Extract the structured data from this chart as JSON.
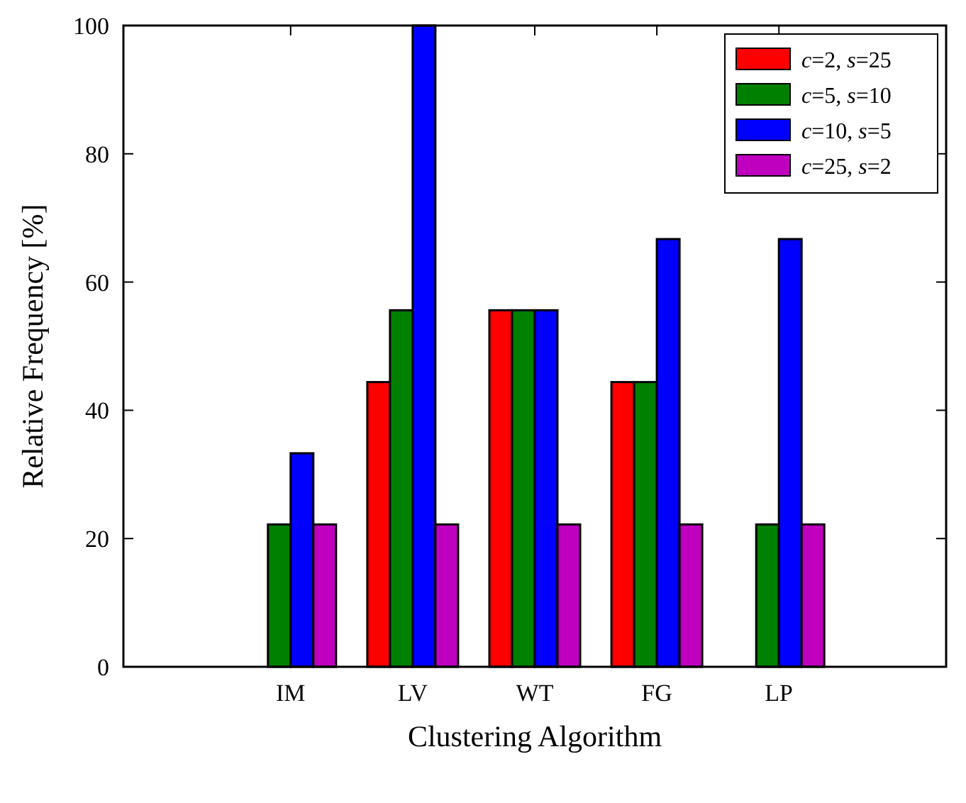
{
  "chart_data": {
    "type": "bar",
    "xlabel": "Clustering Algorithm",
    "ylabel": "Relative Frequency [%]",
    "categories": [
      "IM",
      "LV",
      "WT",
      "FG",
      "LP"
    ],
    "series": [
      {
        "name": "c=2, s=25",
        "color": "#ff0000",
        "values": [
          0,
          44.4,
          55.6,
          44.4,
          0
        ]
      },
      {
        "name": "c=5, s=10",
        "color": "#008000",
        "values": [
          22.2,
          55.6,
          55.6,
          44.4,
          22.2
        ]
      },
      {
        "name": "c=10, s=5",
        "color": "#0000ff",
        "values": [
          33.3,
          100,
          55.6,
          66.7,
          66.7
        ]
      },
      {
        "name": "c=25, s=2",
        "color": "#bf00bf",
        "values": [
          22.2,
          22.2,
          22.2,
          22.2,
          22.2
        ]
      }
    ],
    "ylim": [
      0,
      100
    ],
    "yticks": [
      0,
      20,
      40,
      60,
      80,
      100
    ],
    "grid": false,
    "legend": "top right"
  }
}
